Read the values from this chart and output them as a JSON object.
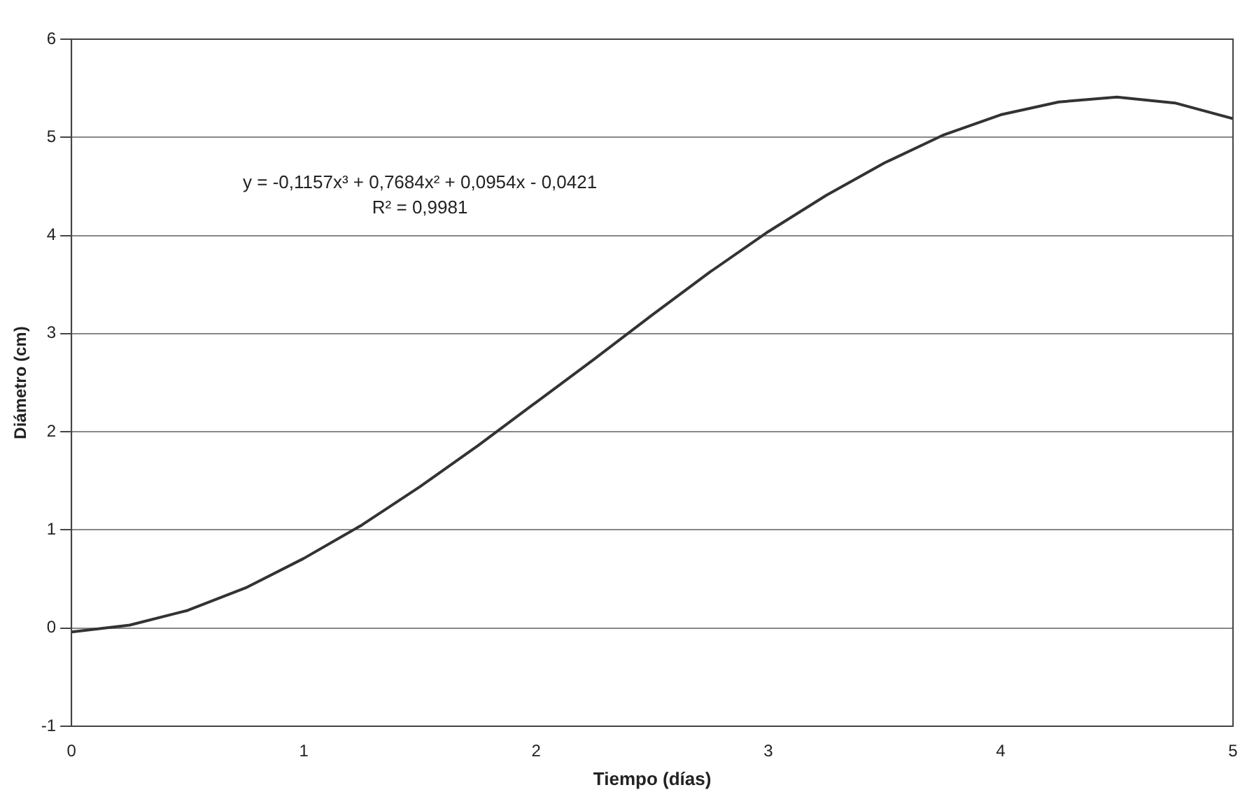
{
  "chart_data": {
    "type": "line",
    "xlabel": "Tiempo (días)",
    "ylabel": "Diámetro (cm)",
    "annotations": [
      "y = -0,1157x³ + 0,7684x² + 0,0954x - 0,0421",
      "R² = 0,9981"
    ],
    "series": [
      {
        "color": "#333333",
        "x": [
          0,
          0.25,
          0.5,
          0.75,
          1,
          1.25,
          1.5,
          1.75,
          2,
          2.25,
          2.5,
          2.75,
          3,
          3.25,
          3.5,
          3.75,
          4,
          4.25,
          4.5,
          4.75,
          5
        ],
        "values": [
          -0.04,
          0.03,
          0.18,
          0.41,
          0.71,
          1.05,
          1.44,
          1.86,
          2.3,
          2.74,
          3.19,
          3.63,
          4.04,
          4.41,
          4.74,
          5.02,
          5.23,
          5.36,
          5.41,
          5.35,
          5.19
        ]
      }
    ],
    "xlim": [
      0,
      5
    ],
    "xticks": [
      0,
      1,
      2,
      3,
      4,
      5
    ],
    "ylim": [
      -1,
      6
    ],
    "yticks": [
      -1,
      0,
      1,
      2,
      3,
      4,
      5,
      6
    ],
    "grid": "y",
    "legend": false,
    "marker": "none",
    "line_style": "solid"
  }
}
